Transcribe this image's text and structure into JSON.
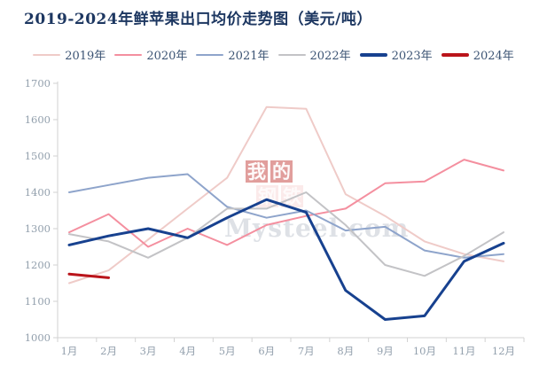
{
  "title": "2019-2024年鲜苹果出口均价走势图（美元/吨）",
  "watermark": {
    "red_text": "我的",
    "faint_text": "钢铁",
    "logo_text": "Mysteel.com"
  },
  "chart_data": {
    "type": "line",
    "title": "2019-2024年鲜苹果出口均价走势图（美元/吨）",
    "unit": "美元/吨",
    "categories": [
      "1月",
      "2月",
      "3月",
      "4月",
      "5月",
      "6月",
      "7月",
      "8月",
      "9月",
      "10月",
      "11月",
      "12月"
    ],
    "y_ticks": [
      1000,
      1100,
      1200,
      1300,
      1400,
      1500,
      1600,
      1700
    ],
    "ylim": [
      1000,
      1700
    ],
    "grid": false,
    "legend_position": "top",
    "axis_color": "#d2d2d2",
    "tick_label_color": "#93a0ad",
    "series": [
      {
        "name": "2019年",
        "color": "#efcbc8",
        "width": 2,
        "values": [
          1150,
          1185,
          1270,
          1355,
          1440,
          1635,
          1630,
          1395,
          1335,
          1265,
          1230,
          1210
        ]
      },
      {
        "name": "2020年",
        "color": "#f48f9f",
        "width": 2,
        "values": [
          1290,
          1340,
          1250,
          1300,
          1255,
          1310,
          1335,
          1355,
          1425,
          1430,
          1490,
          1460
        ]
      },
      {
        "name": "2021年",
        "color": "#8ea4cb",
        "width": 2,
        "values": [
          1400,
          1420,
          1440,
          1450,
          1360,
          1330,
          1350,
          1295,
          1305,
          1240,
          1220,
          1230
        ]
      },
      {
        "name": "2022年",
        "color": "#c3c3c6",
        "width": 2,
        "values": [
          1285,
          1265,
          1220,
          1275,
          1355,
          1355,
          1400,
          1310,
          1200,
          1170,
          1225,
          1290
        ]
      },
      {
        "name": "2023年",
        "color": "#17418f",
        "width": 3,
        "values": [
          1255,
          1280,
          1300,
          1275,
          1330,
          1380,
          1345,
          1130,
          1050,
          1060,
          1210,
          1260
        ]
      },
      {
        "name": "2024年",
        "color": "#ba141a",
        "width": 3,
        "values": [
          1175,
          1165,
          null,
          null,
          null,
          null,
          null,
          null,
          null,
          null,
          null,
          null
        ]
      }
    ]
  }
}
